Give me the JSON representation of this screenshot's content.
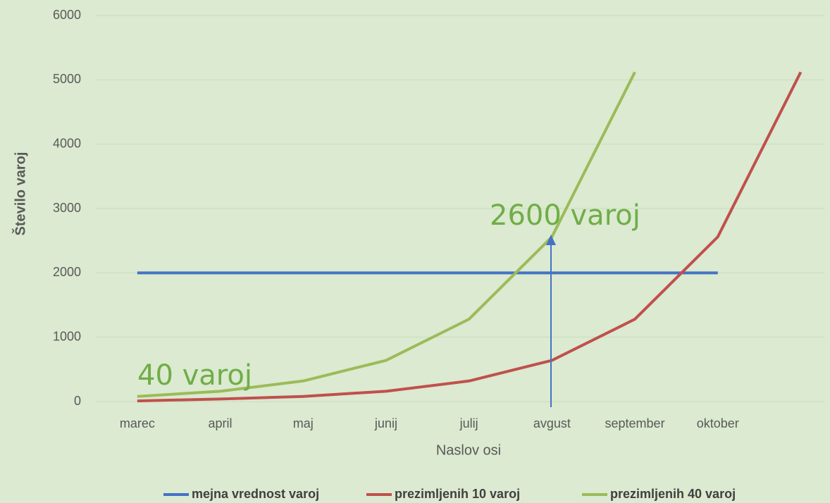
{
  "chart_data": {
    "type": "line",
    "x_label": "Naslov osi",
    "y_label": "Število varoj",
    "categories": [
      "marec",
      "april",
      "maj",
      "junij",
      "julij",
      "avgust",
      "september",
      "oktober",
      null
    ],
    "series": [
      {
        "name": "mejna vrednost varoj",
        "color": "#4472c4",
        "values": [
          2000,
          2000,
          2000,
          2000,
          2000,
          2000,
          2000,
          2000,
          null
        ]
      },
      {
        "name": "prezimljenih 10 varoj",
        "color": "#c0504d",
        "values": [
          10,
          40,
          80,
          160,
          320,
          640,
          1280,
          2560,
          5120
        ]
      },
      {
        "name": "prezimljenih 40 varoj",
        "color": "#9bbb59",
        "values": [
          80,
          160,
          320,
          640,
          1280,
          2560,
          5120,
          null,
          null
        ]
      }
    ],
    "ylim": [
      0,
      6000
    ],
    "yticks": [
      0,
      1000,
      2000,
      3000,
      4000,
      5000,
      6000
    ],
    "grid": true,
    "legend": "bottom",
    "annotations": [
      "40 varoj",
      "2600 varoj"
    ]
  }
}
